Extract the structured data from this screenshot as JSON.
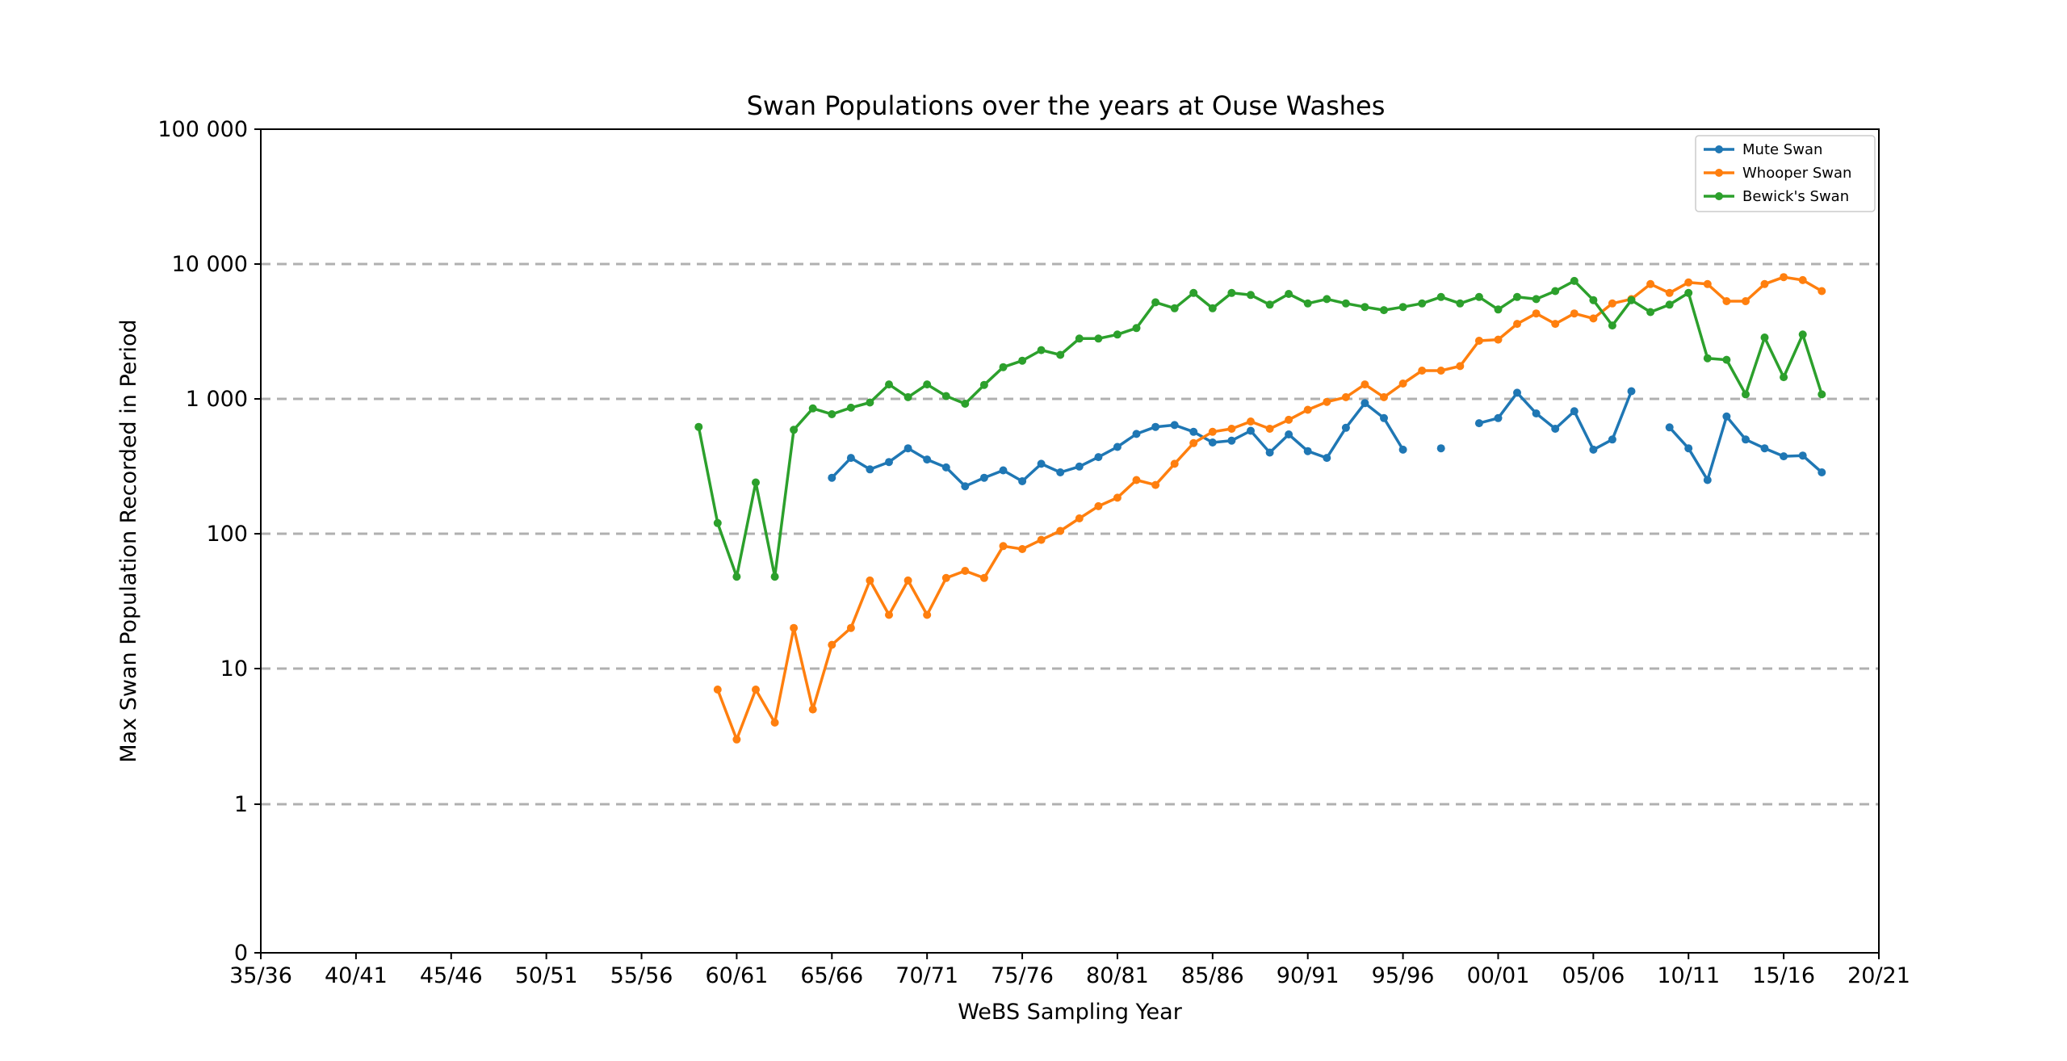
{
  "chart_data": {
    "type": "line",
    "title": "Swan Populations over the years at Ouse Washes",
    "xlabel": "WeBS Sampling Year",
    "ylabel": "Max Swan Population Recorded in Period",
    "x_tick_labels": [
      "35/36",
      "40/41",
      "45/46",
      "50/51",
      "55/56",
      "60/61",
      "65/66",
      "70/71",
      "75/76",
      "80/81",
      "85/86",
      "90/91",
      "95/96",
      "00/01",
      "05/06",
      "10/11",
      "15/16",
      "20/21"
    ],
    "y_tick_labels": [
      "0",
      "1",
      "10",
      "100",
      "1 000",
      "10 000",
      "100 000"
    ],
    "y_scale": "symlog",
    "ylim": [
      0,
      100000
    ],
    "grid": "horizontal dashed",
    "legend_position": "top-right",
    "x_unit": "season start year",
    "xlim": [
      1935,
      2020
    ],
    "series": [
      {
        "name": "Mute Swan",
        "color": "#1f77b4",
        "points": [
          [
            1965,
            260
          ],
          [
            1966,
            365
          ],
          [
            1967,
            300
          ],
          [
            1968,
            340
          ],
          [
            1969,
            430
          ],
          [
            1970,
            355
          ],
          [
            1971,
            310
          ],
          [
            1972,
            225
          ],
          [
            1973,
            260
          ],
          [
            1974,
            295
          ],
          [
            1975,
            245
          ],
          [
            1976,
            330
          ],
          [
            1977,
            285
          ],
          [
            1978,
            315
          ],
          [
            1979,
            370
          ],
          [
            1980,
            440
          ],
          [
            1981,
            550
          ],
          [
            1982,
            620
          ],
          [
            1983,
            640
          ],
          [
            1984,
            570
          ],
          [
            1985,
            475
          ],
          [
            1986,
            490
          ],
          [
            1987,
            580
          ],
          [
            1988,
            400
          ],
          [
            1989,
            545
          ],
          [
            1990,
            410
          ],
          [
            1991,
            365
          ],
          [
            1992,
            610
          ],
          [
            1993,
            930
          ],
          [
            1994,
            720
          ],
          [
            1995,
            420
          ],
          [
            1996,
            null
          ],
          [
            1997,
            430
          ],
          [
            1998,
            null
          ],
          [
            1999,
            660
          ],
          [
            2000,
            720
          ],
          [
            2001,
            1110
          ],
          [
            2002,
            780
          ],
          [
            2003,
            600
          ],
          [
            2004,
            810
          ],
          [
            2005,
            420
          ],
          [
            2006,
            500
          ],
          [
            2007,
            1140
          ],
          [
            2008,
            null
          ],
          [
            2009,
            615
          ],
          [
            2010,
            430
          ],
          [
            2011,
            250
          ],
          [
            2012,
            740
          ],
          [
            2013,
            500
          ],
          [
            2014,
            430
          ],
          [
            2015,
            375
          ],
          [
            2016,
            380
          ],
          [
            2017,
            285
          ]
        ]
      },
      {
        "name": "Whooper Swan",
        "color": "#ff7f0e",
        "points": [
          [
            1959,
            7
          ],
          [
            1960,
            3
          ],
          [
            1961,
            7
          ],
          [
            1962,
            4
          ],
          [
            1963,
            20
          ],
          [
            1964,
            5
          ],
          [
            1965,
            15
          ],
          [
            1966,
            20
          ],
          [
            1967,
            45
          ],
          [
            1968,
            25
          ],
          [
            1969,
            45
          ],
          [
            1970,
            25
          ],
          [
            1971,
            47
          ],
          [
            1972,
            53
          ],
          [
            1973,
            47
          ],
          [
            1974,
            81
          ],
          [
            1975,
            77
          ],
          [
            1976,
            90
          ],
          [
            1977,
            105
          ],
          [
            1978,
            130
          ],
          [
            1979,
            160
          ],
          [
            1980,
            185
          ],
          [
            1981,
            250
          ],
          [
            1982,
            230
          ],
          [
            1983,
            330
          ],
          [
            1984,
            470
          ],
          [
            1985,
            570
          ],
          [
            1986,
            600
          ],
          [
            1987,
            680
          ],
          [
            1988,
            600
          ],
          [
            1989,
            700
          ],
          [
            1990,
            830
          ],
          [
            1991,
            950
          ],
          [
            1992,
            1030
          ],
          [
            1993,
            1280
          ],
          [
            1994,
            1030
          ],
          [
            1995,
            1300
          ],
          [
            1996,
            1620
          ],
          [
            1997,
            1620
          ],
          [
            1998,
            1750
          ],
          [
            1999,
            2700
          ],
          [
            2000,
            2750
          ],
          [
            2001,
            3600
          ],
          [
            2002,
            4300
          ],
          [
            2003,
            3600
          ],
          [
            2004,
            4300
          ],
          [
            2005,
            3950
          ],
          [
            2006,
            5100
          ],
          [
            2007,
            5500
          ],
          [
            2008,
            7100
          ],
          [
            2009,
            6100
          ],
          [
            2010,
            7300
          ],
          [
            2011,
            7100
          ],
          [
            2012,
            5300
          ],
          [
            2013,
            5300
          ],
          [
            2014,
            7100
          ],
          [
            2015,
            8000
          ],
          [
            2016,
            7600
          ],
          [
            2017,
            6300
          ]
        ]
      },
      {
        "name": "Bewick's Swan",
        "color": "#2ca02c",
        "points": [
          [
            1958,
            620
          ],
          [
            1959,
            120
          ],
          [
            1960,
            48
          ],
          [
            1961,
            240
          ],
          [
            1962,
            48
          ],
          [
            1963,
            590
          ],
          [
            1964,
            850
          ],
          [
            1965,
            770
          ],
          [
            1966,
            860
          ],
          [
            1967,
            940
          ],
          [
            1968,
            1280
          ],
          [
            1969,
            1030
          ],
          [
            1970,
            1280
          ],
          [
            1971,
            1050
          ],
          [
            1972,
            920
          ],
          [
            1973,
            1270
          ],
          [
            1974,
            1720
          ],
          [
            1975,
            1920
          ],
          [
            1976,
            2300
          ],
          [
            1977,
            2120
          ],
          [
            1978,
            2800
          ],
          [
            1979,
            2800
          ],
          [
            1980,
            3000
          ],
          [
            1981,
            3350
          ],
          [
            1982,
            5200
          ],
          [
            1983,
            4700
          ],
          [
            1984,
            6100
          ],
          [
            1985,
            4700
          ],
          [
            1986,
            6100
          ],
          [
            1987,
            5900
          ],
          [
            1988,
            5000
          ],
          [
            1989,
            6000
          ],
          [
            1990,
            5100
          ],
          [
            1991,
            5500
          ],
          [
            1992,
            5100
          ],
          [
            1993,
            4800
          ],
          [
            1994,
            4550
          ],
          [
            1995,
            4800
          ],
          [
            1996,
            5100
          ],
          [
            1997,
            5700
          ],
          [
            1998,
            5100
          ],
          [
            1999,
            5700
          ],
          [
            2000,
            4600
          ],
          [
            2001,
            5700
          ],
          [
            2002,
            5500
          ],
          [
            2003,
            6300
          ],
          [
            2004,
            7500
          ],
          [
            2005,
            5400
          ],
          [
            2006,
            3500
          ],
          [
            2007,
            5400
          ],
          [
            2008,
            4400
          ],
          [
            2009,
            5000
          ],
          [
            2010,
            6100
          ],
          [
            2011,
            2000
          ],
          [
            2012,
            1950
          ],
          [
            2013,
            1080
          ],
          [
            2014,
            2850
          ],
          [
            2015,
            1450
          ],
          [
            2016,
            3000
          ],
          [
            2017,
            1080
          ]
        ]
      }
    ]
  }
}
